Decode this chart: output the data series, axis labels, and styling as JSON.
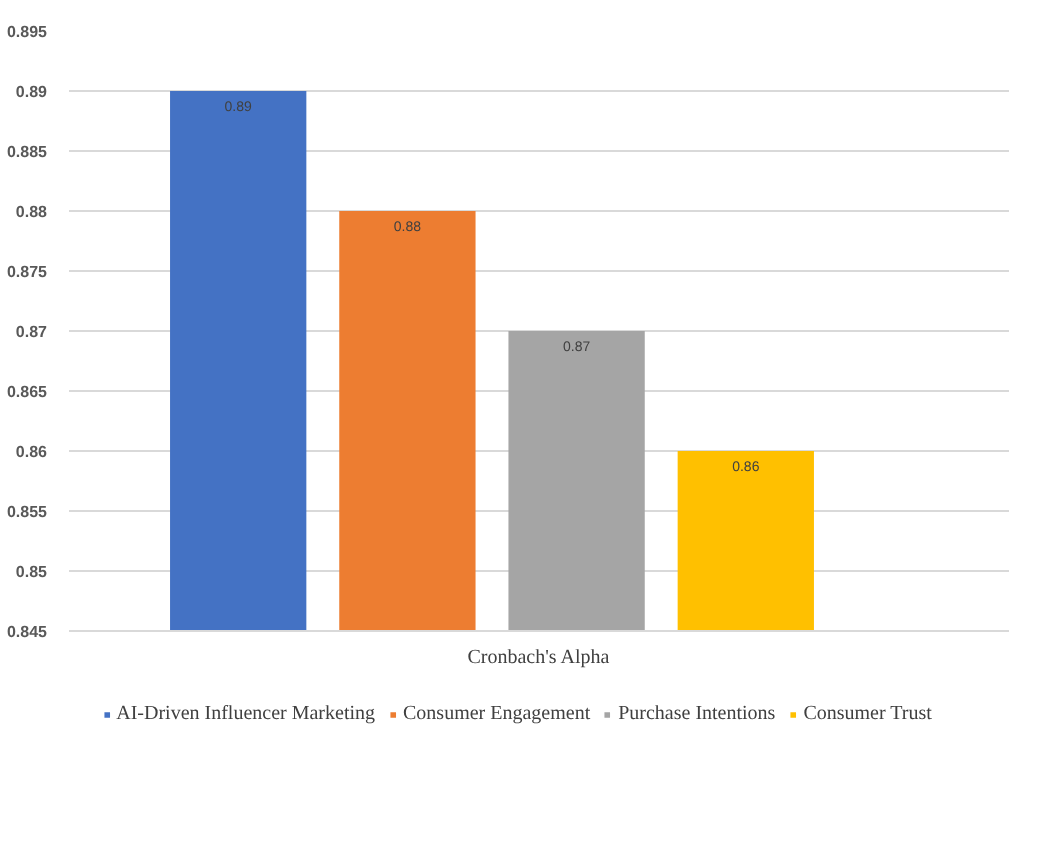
{
  "chart_data": {
    "type": "bar",
    "xlabel": "Cronbach's Alpha",
    "categories": [
      null
    ],
    "series": [
      {
        "name": "AI-Driven Influencer Marketing",
        "color": "#4472c4",
        "values": [
          0.89
        ]
      },
      {
        "name": "Consumer Engagement",
        "color": "#ed7d31",
        "values": [
          0.88
        ]
      },
      {
        "name": "Purchase Intentions",
        "color": "#a5a5a5",
        "values": [
          0.87
        ]
      },
      {
        "name": "Consumer Trust",
        "color": "#ffc000",
        "values": [
          0.86
        ]
      }
    ],
    "ylim": [
      0.845,
      0.895
    ],
    "yticks": [
      0.845,
      0.85,
      0.855,
      0.86,
      0.865,
      0.87,
      0.875,
      0.88,
      0.885,
      0.89,
      0.895
    ],
    "grid": "y",
    "legend": "bottom",
    "data_labels": true
  }
}
